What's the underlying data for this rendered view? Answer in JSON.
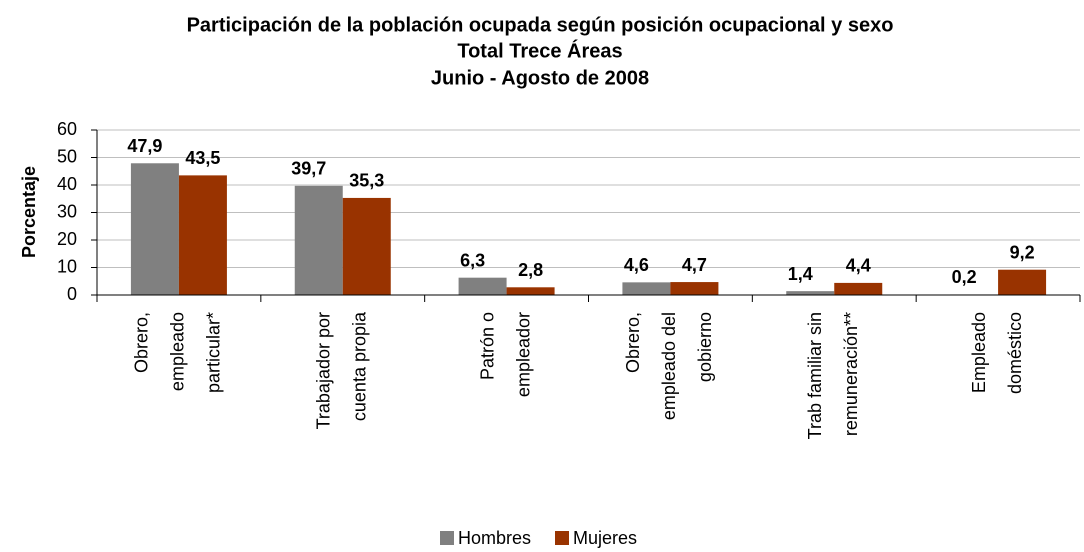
{
  "chart_data": {
    "type": "bar",
    "title": [
      "Participación de la población ocupada según posición ocupacional y sexo",
      "Total Trece Áreas",
      "Junio - Agosto de 2008"
    ],
    "ylabel": "Porcentaje",
    "categories": [
      [
        "Obrero,",
        "empleado",
        "particular*"
      ],
      [
        "Trabajador por",
        "cuenta propia"
      ],
      [
        "Patrón o",
        "empleador"
      ],
      [
        "Obrero,",
        "empleado del",
        "gobierno"
      ],
      [
        "Trab familiar sin",
        "remuneración**"
      ],
      [
        "Empleado",
        "doméstico"
      ]
    ],
    "series": [
      {
        "name": "Hombres",
        "color": "#808080",
        "values": [
          47.9,
          39.7,
          6.3,
          4.6,
          1.4,
          0.2
        ],
        "value_labels": [
          "47,9",
          "39,7",
          "6,3",
          "4,6",
          "1,4",
          "0,2"
        ]
      },
      {
        "name": "Mujeres",
        "color": "#993300",
        "values": [
          43.5,
          35.3,
          2.8,
          4.7,
          4.4,
          9.2
        ],
        "value_labels": [
          "43,5",
          "35,3",
          "2,8",
          "4,7",
          "4,4",
          "9,2"
        ]
      }
    ],
    "ylim": [
      0,
      60
    ],
    "yticks": [
      0,
      10,
      20,
      30,
      40,
      50,
      60
    ],
    "grid": true,
    "legend": "bottom"
  }
}
